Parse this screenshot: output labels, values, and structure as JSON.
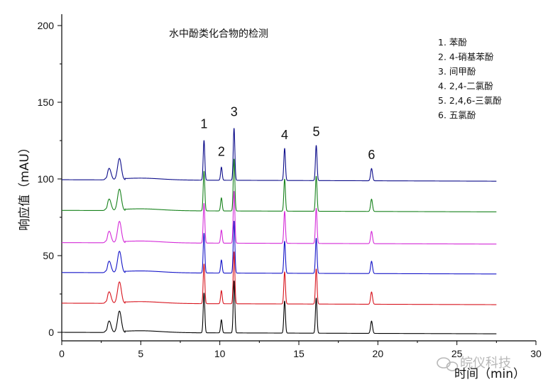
{
  "chart_data": {
    "type": "line",
    "title": "水中酚类化合物的检测",
    "xlabel": "时间（min）",
    "ylabel": "响应值（mAU）",
    "xlim": [
      0,
      30
    ],
    "ylim": [
      0,
      200
    ],
    "x_ticks": [
      0,
      5,
      10,
      15,
      20,
      25,
      30
    ],
    "y_ticks": [
      0,
      50,
      100,
      150,
      200
    ],
    "x_range_data": [
      0,
      27.5
    ],
    "legend_position": "top-right",
    "legend": [
      "1. 苯酚",
      "2. 4-硝基苯酚",
      "3.  间甲酚",
      "4. 2,4-二氯酚",
      "5. 2,4,6-三氯酚",
      "6. 五氯酚"
    ],
    "peak_labels": [
      {
        "text": "1",
        "x": 9.0,
        "y": 133
      },
      {
        "text": "2",
        "x": 10.1,
        "y": 115
      },
      {
        "text": "3",
        "x": 10.9,
        "y": 141
      },
      {
        "text": "4",
        "x": 14.1,
        "y": 126
      },
      {
        "text": "5",
        "x": 16.1,
        "y": 128
      },
      {
        "text": "6",
        "x": 19.6,
        "y": 113
      }
    ],
    "peaks": [
      {
        "t": 3.0,
        "w": 0.12,
        "h": 7.5
      },
      {
        "t": 3.65,
        "w": 0.12,
        "h": 14
      },
      {
        "t": 9.0,
        "w": 0.05,
        "h": 26
      },
      {
        "t": 10.1,
        "w": 0.05,
        "h": 8.5
      },
      {
        "t": 10.9,
        "w": 0.05,
        "h": 34
      },
      {
        "t": 14.1,
        "w": 0.05,
        "h": 21
      },
      {
        "t": 16.1,
        "w": 0.05,
        "h": 23
      },
      {
        "t": 19.6,
        "w": 0.06,
        "h": 8
      }
    ],
    "series": [
      {
        "color": "#000000",
        "baseline": 0
      },
      {
        "color": "#d8141e",
        "baseline": 19
      },
      {
        "color": "#1515c8",
        "baseline": 39
      },
      {
        "color": "#d42ad8",
        "baseline": 58.5
      },
      {
        "color": "#17821c",
        "baseline": 79.5
      },
      {
        "color": "#0c0c8a",
        "baseline": 99.5
      }
    ],
    "watermark": "皖仪科技"
  }
}
